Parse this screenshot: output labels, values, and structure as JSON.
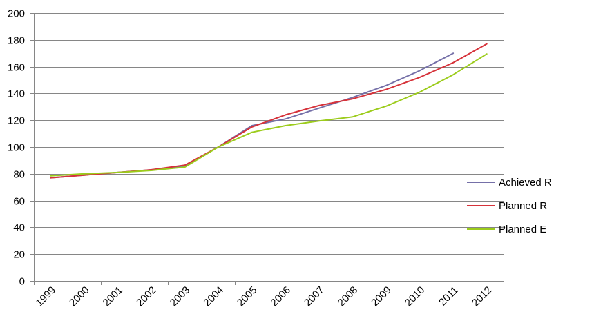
{
  "chart_data": {
    "type": "line",
    "title": "",
    "xlabel": "",
    "ylabel": "",
    "ylim": [
      0,
      200
    ],
    "yticks": [
      0,
      20,
      40,
      60,
      80,
      100,
      120,
      140,
      160,
      180,
      200
    ],
    "grid": "horizontal",
    "legend_position": "right",
    "categories": [
      "1999",
      "2000",
      "2001",
      "2002",
      "2003",
      "2004",
      "2005",
      "2006",
      "2007",
      "2008",
      "2009",
      "2010",
      "2011",
      "2012"
    ],
    "series": [
      {
        "name": "Achieved R",
        "color": "#7570a8",
        "values": [
          77,
          79,
          81,
          83,
          86,
          100,
          116,
          121,
          129,
          137,
          146,
          157,
          170,
          null
        ]
      },
      {
        "name": "Planned R",
        "color": "#d6323a",
        "values": [
          77,
          79,
          81,
          83,
          86.5,
          100,
          115,
          124,
          131,
          136,
          143,
          152,
          163,
          177
        ]
      },
      {
        "name": "Planned E",
        "color": "#9ccc1c",
        "values": [
          78.5,
          80,
          81,
          82.5,
          85,
          100,
          111,
          116,
          119.5,
          122.5,
          130.5,
          141,
          154,
          169.5
        ]
      }
    ]
  }
}
